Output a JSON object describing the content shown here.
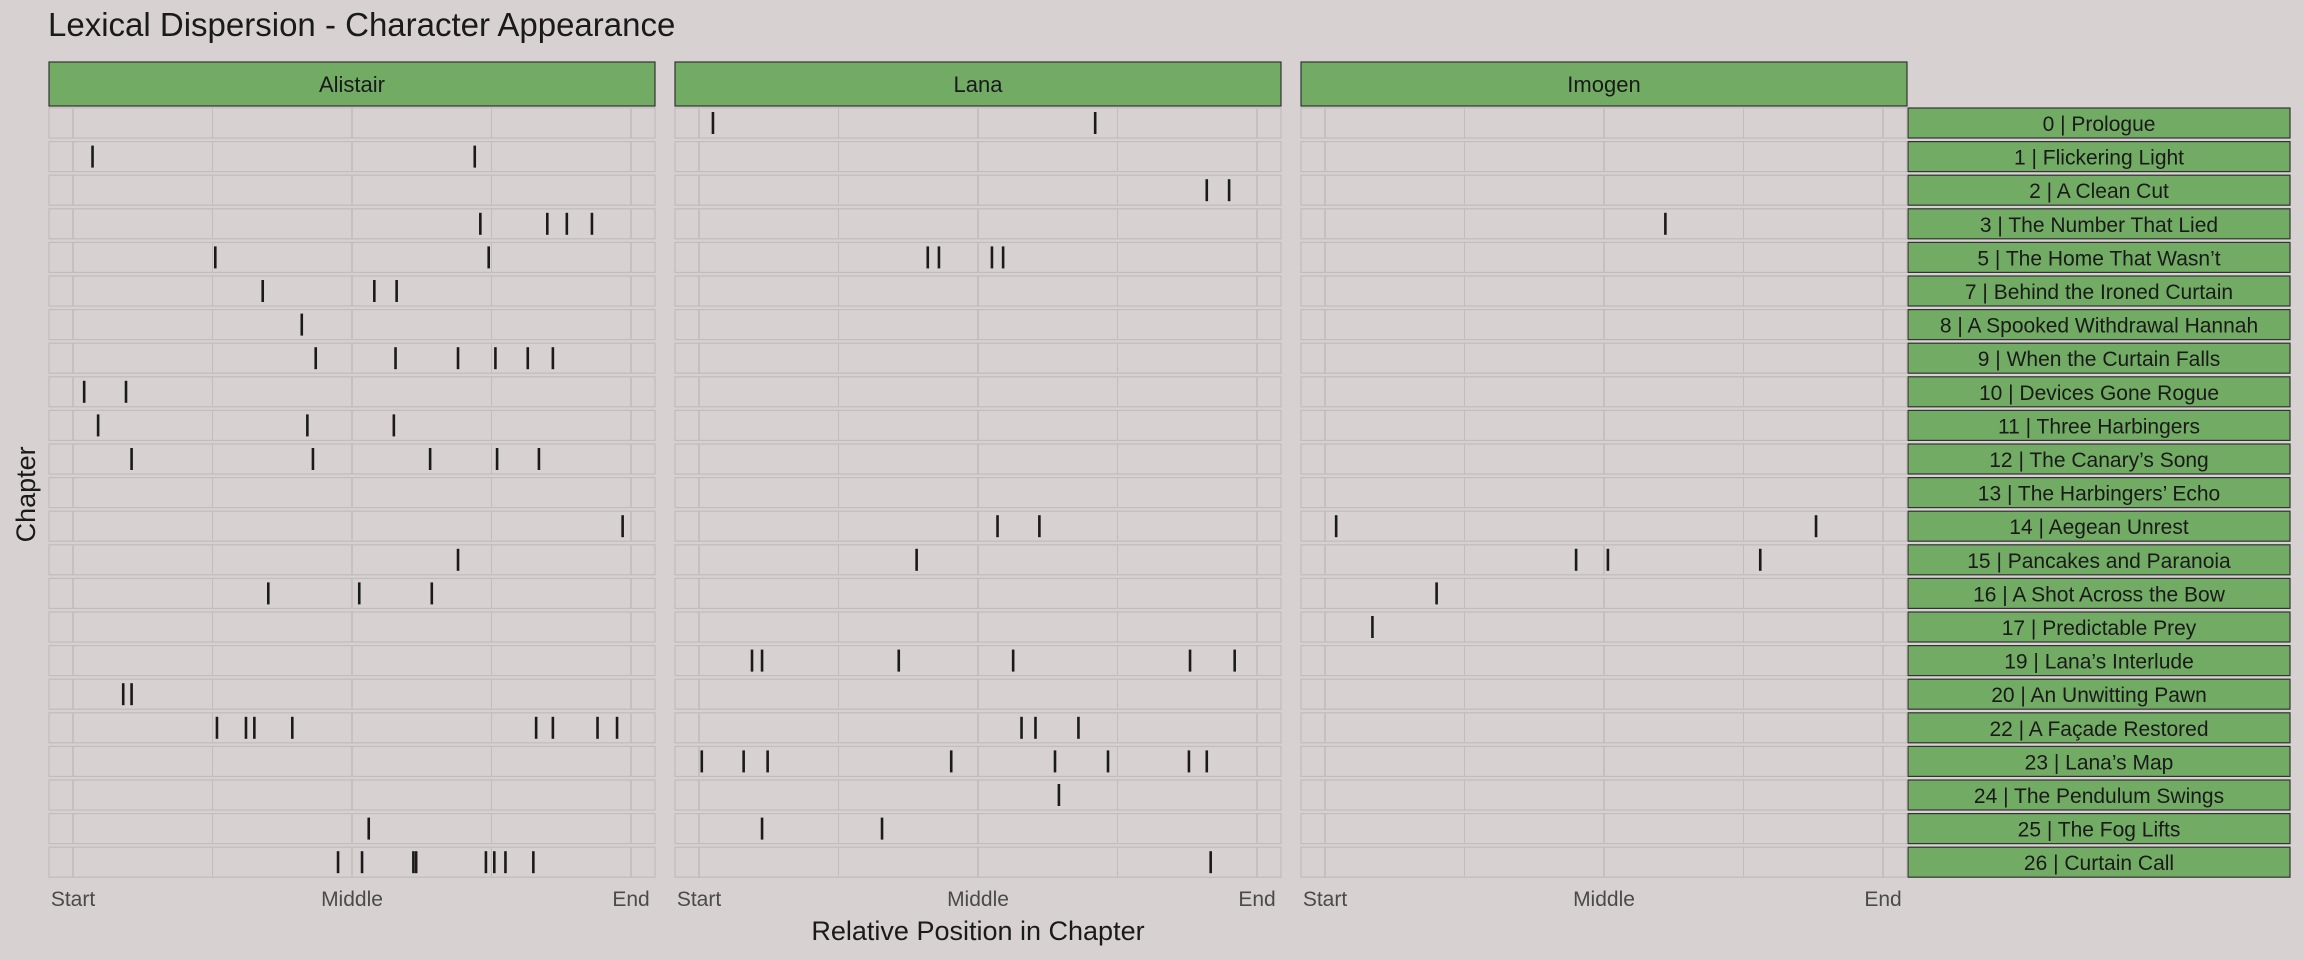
{
  "chart_data": {
    "type": "strip",
    "title": "Lexical Dispersion - Character Appearance",
    "xlabel": "Relative Position in Chapter",
    "ylabel": "Chapter",
    "xticks": [
      "Start",
      "Middle",
      "End"
    ],
    "xlim": [
      0,
      1
    ],
    "grid": true,
    "colors": {
      "background": "#d7d2d1",
      "strip_fill": "#72ab64",
      "tick_mark": "#1a1a1a",
      "gridline": "#c2bcbb"
    },
    "characters": [
      "Alistair",
      "Lana",
      "Imogen"
    ],
    "chapters": [
      "0 | Prologue",
      "1 | Flickering Light",
      "2 | A Clean Cut",
      "3 | The Number That Lied",
      "5 | The Home That Wasn’t",
      "7 | Behind the Ironed Curtain",
      "8 | A Spooked Withdrawal Hannah",
      "9 | When the Curtain Falls",
      "10 | Devices Gone Rogue",
      "11 | Three Harbingers",
      "12 | The Canary’s Song",
      "13 | The Harbingers’ Echo",
      "14 | Aegean Unrest",
      "15 | Pancakes and Paranoia",
      "16 | A Shot Across the Bow",
      "17 | Predictable Prey",
      "19 | Lana’s Interlude",
      "20 | An Unwitting Pawn",
      "22 | A Façade Restored",
      "23 | Lana’s Map",
      "24 | The Pendulum Swings",
      "25 | The Fog Lifts",
      "26 | Curtain Call"
    ],
    "appearances": {
      "Alistair": [
        [],
        [
          0.035,
          0.72
        ],
        [],
        [
          0.73,
          0.85,
          0.885,
          0.93
        ],
        [
          0.255,
          0.745
        ],
        [
          0.34,
          0.54,
          0.58
        ],
        [
          0.41
        ],
        [
          0.435,
          0.578,
          0.69,
          0.757,
          0.815,
          0.86
        ],
        [
          0.02,
          0.095
        ],
        [
          0.045,
          0.42,
          0.575
        ],
        [
          0.105,
          0.43,
          0.64,
          0.76,
          0.835
        ],
        [],
        [
          0.985
        ],
        [
          0.69
        ],
        [
          0.35,
          0.513,
          0.643
        ],
        [],
        [],
        [
          0.09,
          0.105
        ],
        [
          0.258,
          0.31,
          0.325,
          0.393,
          0.83,
          0.86,
          0.94,
          0.975
        ],
        [],
        [],
        [
          0.53
        ],
        [
          0.475,
          0.518,
          0.61,
          0.615,
          0.74,
          0.755,
          0.775,
          0.825
        ]
      ],
      "Lana": [
        [
          0.025,
          0.71
        ],
        [],
        [
          0.91,
          0.95
        ],
        [],
        [
          0.41,
          0.43,
          0.525,
          0.545
        ],
        [],
        [],
        [],
        [],
        [],
        [],
        [],
        [
          0.535,
          0.61
        ],
        [
          0.39
        ],
        [],
        [],
        [
          0.095,
          0.113,
          0.358,
          0.563,
          0.88,
          0.96
        ],
        [],
        [
          0.578,
          0.603,
          0.68
        ],
        [
          0.005,
          0.08,
          0.123,
          0.452,
          0.638,
          0.733,
          0.878,
          0.91
        ],
        [
          0.645
        ],
        [
          0.113,
          0.328
        ],
        [
          0.917
        ]
      ],
      "Imogen": [
        [],
        [],
        [],
        [
          0.61
        ],
        [],
        [],
        [],
        [],
        [],
        [],
        [],
        [],
        [
          0.02,
          0.88
        ],
        [
          0.45,
          0.507,
          0.78
        ],
        [
          0.2
        ],
        [
          0.085
        ],
        [],
        [],
        [],
        [],
        [],
        [],
        []
      ]
    }
  }
}
